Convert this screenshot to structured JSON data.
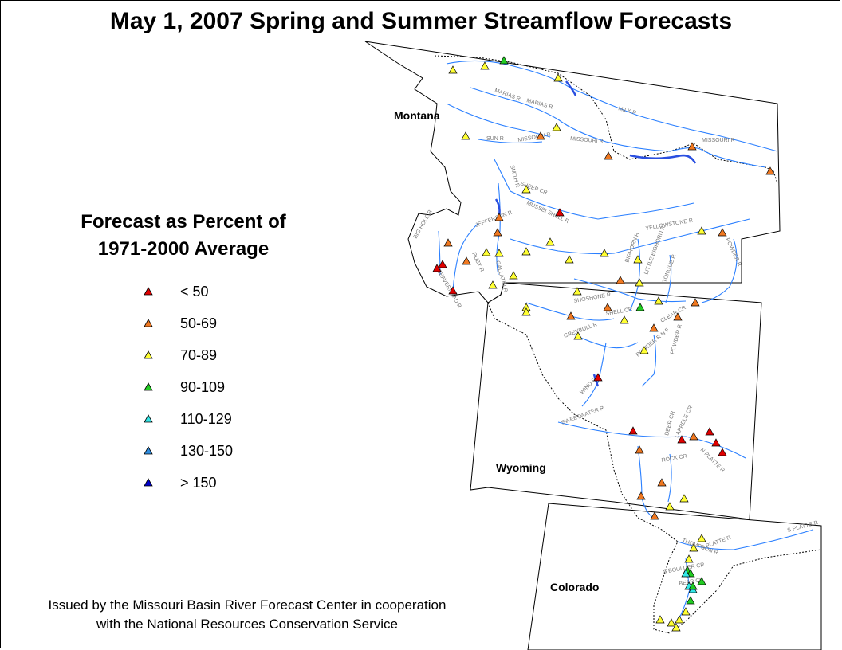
{
  "title": "May 1, 2007 Spring and Summer Streamflow Forecasts",
  "legend": {
    "title_line1": "Forecast as Percent of",
    "title_line2": "1971-2000 Average",
    "items": [
      {
        "label": "< 50",
        "color": "#e00000"
      },
      {
        "label": "50-69",
        "color": "#f07820"
      },
      {
        "label": "70-89",
        "color": "#ffff33"
      },
      {
        "label": "90-109",
        "color": "#22cc22"
      },
      {
        "label": "110-129",
        "color": "#33e6e6"
      },
      {
        "label": "130-150",
        "color": "#2f8de0"
      },
      {
        "label": "> 150",
        "color": "#0000cc"
      }
    ]
  },
  "states": {
    "montana": "Montana",
    "wyoming": "Wyoming",
    "colorado": "Colorado"
  },
  "river_labels": [
    "MILK R",
    "MARIAS R",
    "MARIAS R",
    "SUN R",
    "MISSOURI R",
    "MISSOURI R",
    "MISSOURI R",
    "SMITH R",
    "SHEEP CR",
    "MUSSELSHELL R",
    "JEFFERSON R",
    "RUBY R",
    "GALLATIN R",
    "BIG HOLE R",
    "BEAVERHEAD R",
    "YELLOWSTONE R",
    "POWDER R",
    "BIGHORN R",
    "LITTLE BIGHORN R",
    "TONGUE R",
    "SHOSHONE R",
    "SHELL CR",
    "CLEAR CR",
    "GREYBULL R",
    "POWDER R N F",
    "POWDER R",
    "WIND R",
    "SWEETWATER R",
    "DEER CR",
    "LAPRELE CR",
    "N PLATTE R",
    "ROCK CR",
    "S PLATTE R",
    "S PLATTE R",
    "THOMPSON R",
    "BEAR CR",
    "S BOULDER CR"
  ],
  "forecast_points": {
    "under_50": 9,
    "50_69": 20,
    "70_89": 35,
    "90_109": 7,
    "110_129": 3,
    "130_150": 0,
    "over_150": 0
  },
  "credit_line1": "Issued by the Missouri Basin River Forecast Center in cooperation",
  "credit_line2": "with the National Resources Conservation Service"
}
